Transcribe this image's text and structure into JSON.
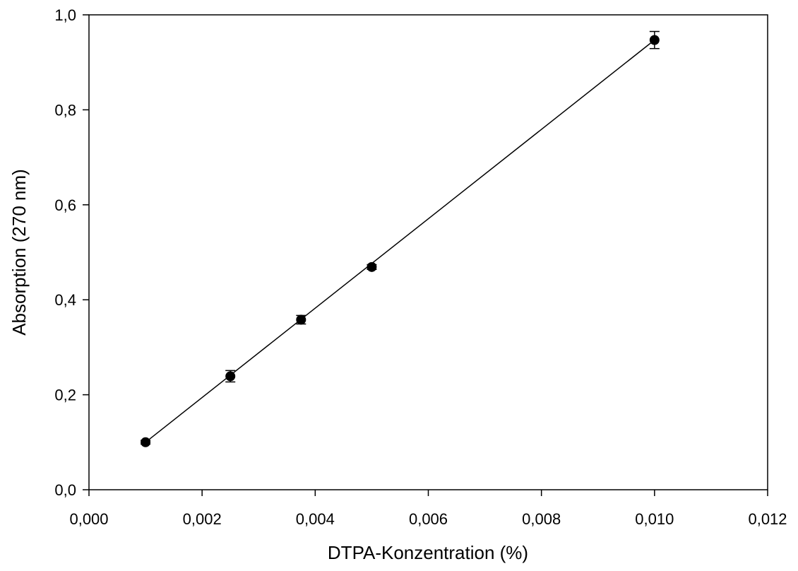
{
  "chart_data": {
    "type": "scatter",
    "title": "",
    "xlabel": "DTPA-Konzentration (%)",
    "ylabel": "Absorption (270 nm)",
    "xlim": [
      0,
      0.012
    ],
    "ylim": [
      0,
      1.0
    ],
    "x_ticks": [
      0,
      0.002,
      0.004,
      0.006,
      0.008,
      0.01,
      0.012
    ],
    "x_tick_labels": [
      "0,000",
      "0,002",
      "0,004",
      "0,006",
      "0,008",
      "0,010",
      "0,012"
    ],
    "y_ticks": [
      0,
      0.2,
      0.4,
      0.6,
      0.8,
      1.0
    ],
    "y_tick_labels": [
      "0,0",
      "0,2",
      "0,4",
      "0,6",
      "0,8",
      "1,0"
    ],
    "grid": false,
    "legend": "none",
    "series": [
      {
        "points": [
          {
            "x": 0.001,
            "y": 0.1,
            "err": 0.004
          },
          {
            "x": 0.0025,
            "y": 0.239,
            "err": 0.012
          },
          {
            "x": 0.00375,
            "y": 0.358,
            "err": 0.009
          },
          {
            "x": 0.005,
            "y": 0.469,
            "err": 0.005
          },
          {
            "x": 0.01,
            "y": 0.947,
            "err": 0.018
          }
        ],
        "fit_line": {
          "x": [
            0.001,
            0.01
          ],
          "y": [
            0.1,
            0.947
          ]
        },
        "color": "#000000"
      }
    ]
  }
}
